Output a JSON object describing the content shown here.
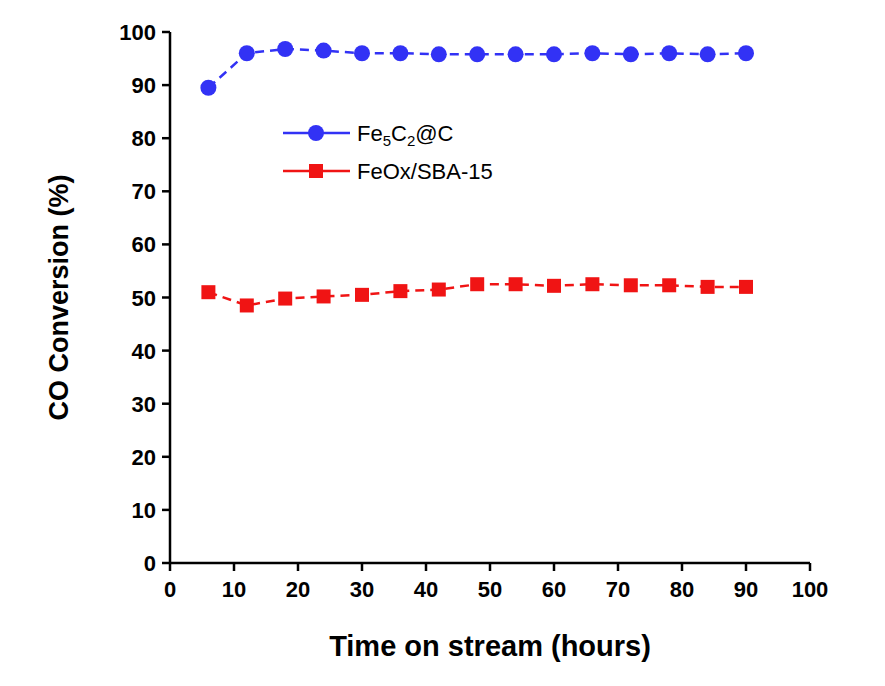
{
  "chart_data": {
    "type": "line",
    "x_label": "Time on stream (hours)",
    "y_label": "CO Conversion (%)",
    "x": [
      6,
      12,
      18,
      24,
      30,
      36,
      42,
      48,
      54,
      60,
      66,
      72,
      78,
      84,
      90
    ],
    "series": [
      {
        "name": "Fe5C2@C",
        "color": "#3232f5",
        "marker": "circle",
        "line_style": "dashed",
        "values": [
          89.5,
          96,
          96.8,
          96.5,
          96,
          96,
          95.8,
          95.8,
          95.8,
          95.8,
          96,
          95.8,
          96,
          95.8,
          96
        ]
      },
      {
        "name": "FeOx/SBA-15",
        "color": "#f01414",
        "marker": "square",
        "line_style": "dashed",
        "values": [
          51,
          48.5,
          49.8,
          50.2,
          50.5,
          51.2,
          51.5,
          52.5,
          52.5,
          52.2,
          52.5,
          52.3,
          52.3,
          52,
          52
        ]
      }
    ],
    "xlim": [
      0,
      100
    ],
    "xticks": [
      0,
      10,
      20,
      30,
      40,
      50,
      60,
      70,
      80,
      90,
      100
    ],
    "ylim": [
      0,
      100
    ],
    "yticks": [
      0,
      10,
      20,
      30,
      40,
      50,
      60,
      70,
      80,
      90,
      100
    ],
    "grid": false,
    "legend": "upper left"
  }
}
